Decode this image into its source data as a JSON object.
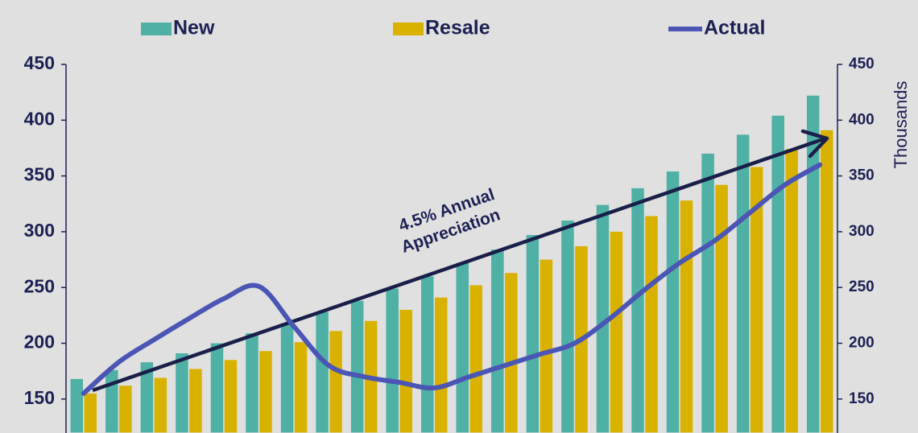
{
  "chart_data": {
    "type": "bar",
    "categories": [
      null,
      null,
      null,
      null,
      null,
      null,
      null,
      null,
      null,
      null,
      null,
      null,
      null,
      null,
      null,
      null,
      null,
      null,
      null,
      null,
      null,
      null
    ],
    "series": [
      {
        "name": "New",
        "type": "bar",
        "color": "#4fb1a6",
        "values": [
          168,
          176,
          183,
          191,
          200,
          209,
          218,
          228,
          238,
          249,
          260,
          272,
          284,
          297,
          310,
          324,
          339,
          354,
          370,
          387,
          404,
          422
        ]
      },
      {
        "name": "Resale",
        "type": "bar",
        "color": "#d9b200",
        "values": [
          155,
          162,
          169,
          177,
          185,
          193,
          201,
          211,
          220,
          230,
          241,
          252,
          263,
          275,
          287,
          300,
          314,
          328,
          342,
          358,
          374,
          391
        ]
      },
      {
        "name": "Actual",
        "type": "line",
        "axis": "y2",
        "color": "#4b55b3",
        "values": [
          155,
          183,
          203,
          222,
          240,
          251,
          215,
          180,
          170,
          165,
          160,
          170,
          180,
          190,
          200,
          222,
          248,
          272,
          292,
          317,
          342,
          360
        ]
      }
    ],
    "ylim": [
      120,
      450
    ],
    "yticks": [
      150,
      200,
      250,
      300,
      350,
      400,
      450
    ],
    "y2lim": [
      120,
      450
    ],
    "y2ticks": [
      150,
      200,
      250,
      300,
      350,
      400,
      450
    ],
    "y2label": "Thousands",
    "annotation": [
      "4.5% Annual",
      "Appreciation"
    ],
    "legend": "top"
  }
}
